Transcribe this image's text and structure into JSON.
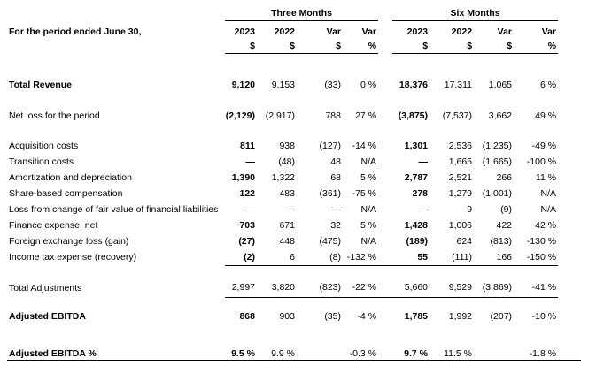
{
  "table": {
    "corner_label": "For the period ended June 30,",
    "groups": [
      {
        "label": "Three Months"
      },
      {
        "label": "Six Months"
      }
    ],
    "year_columns": [
      "2023",
      "2022",
      "Var",
      "Var",
      "2023",
      "2022",
      "Var",
      "Var"
    ],
    "unit_row": [
      "$",
      "$",
      "$",
      "%",
      "$",
      "$",
      "$",
      "%"
    ],
    "rows": [
      {
        "label": "Total Revenue",
        "labelBold": true,
        "boldCols": [
          0,
          4
        ],
        "gapBefore": 26,
        "height": 18,
        "ruleAfter": false,
        "ruleFull": false,
        "values": [
          "9,120",
          "9,153",
          "(33)",
          "0 %",
          "18,376",
          "17,311",
          "1,065",
          "6 %"
        ]
      },
      {
        "label": "Net loss for the period",
        "labelBold": false,
        "boldCols": [
          0,
          4
        ],
        "gapBefore": 17,
        "height": 18,
        "ruleAfter": false,
        "ruleFull": false,
        "values": [
          "(2,129)",
          "(2,917)",
          "788",
          "27 %",
          "(3,875)",
          "(7,537)",
          "3,662",
          "49 %"
        ]
      },
      {
        "label": "Acquisition costs",
        "labelBold": false,
        "boldCols": [
          0,
          4
        ],
        "gapBefore": 16,
        "height": 18,
        "ruleAfter": false,
        "ruleFull": false,
        "values": [
          "811",
          "938",
          "(127)",
          "-14 %",
          "1,301",
          "2,536",
          "(1,235)",
          "-49 %"
        ]
      },
      {
        "label": "Transition costs",
        "labelBold": false,
        "boldCols": [
          0,
          4
        ],
        "gapBefore": 0,
        "height": 18,
        "ruleAfter": false,
        "ruleFull": false,
        "values": [
          "—",
          "(48)",
          "48",
          "N/A",
          "—",
          "1,665",
          "(1,665)",
          "-100 %"
        ]
      },
      {
        "label": "Amortization and depreciation",
        "labelBold": false,
        "boldCols": [
          0,
          4
        ],
        "gapBefore": 0,
        "height": 18,
        "ruleAfter": false,
        "ruleFull": false,
        "values": [
          "1,390",
          "1,322",
          "68",
          "5 %",
          "2,787",
          "2,521",
          "266",
          "11 %"
        ]
      },
      {
        "label": "Share-based compensation",
        "labelBold": false,
        "boldCols": [
          0,
          4
        ],
        "gapBefore": 0,
        "height": 18,
        "ruleAfter": false,
        "ruleFull": false,
        "values": [
          "122",
          "483",
          "(361)",
          "-75 %",
          "278",
          "1,279",
          "(1,001)",
          "N/A"
        ]
      },
      {
        "label": "Loss from change of fair value of financial liabilities",
        "labelBold": false,
        "boldCols": [
          0,
          4
        ],
        "gapBefore": 0,
        "height": 18,
        "ruleAfter": false,
        "ruleFull": false,
        "values": [
          "—",
          "—",
          "—",
          "N/A",
          "—",
          "9",
          "(9)",
          "N/A"
        ]
      },
      {
        "label": "Finance expense, net",
        "labelBold": false,
        "boldCols": [
          0,
          4
        ],
        "gapBefore": 0,
        "height": 18,
        "ruleAfter": false,
        "ruleFull": false,
        "values": [
          "703",
          "671",
          "32",
          "5 %",
          "1,428",
          "1,006",
          "422",
          "42 %"
        ]
      },
      {
        "label": "Foreign exchange loss (gain)",
        "labelBold": false,
        "boldCols": [
          0,
          4
        ],
        "gapBefore": 0,
        "height": 18,
        "ruleAfter": false,
        "ruleFull": false,
        "values": [
          "(27)",
          "448",
          "(475)",
          "N/A",
          "(189)",
          "624",
          "(813)",
          "-130 %"
        ]
      },
      {
        "label": "Income tax expense (recovery)",
        "labelBold": false,
        "boldCols": [
          0,
          4
        ],
        "gapBefore": 0,
        "height": 18,
        "ruleAfter": true,
        "ruleFull": false,
        "values": [
          "(2)",
          "6",
          "(8)",
          "-132 %",
          "55",
          "(111)",
          "166",
          "-150 %"
        ]
      },
      {
        "label": "Total Adjustments",
        "labelBold": false,
        "boldCols": [],
        "gapBefore": 14,
        "height": 22,
        "ruleAfter": true,
        "ruleFull": false,
        "values": [
          "2,997",
          "3,820",
          "(823)",
          "-22 %",
          "5,660",
          "9,529",
          "(3,869)",
          "-41 %"
        ]
      },
      {
        "label": "Adjusted EBITDA",
        "labelBold": true,
        "boldCols": [
          0,
          4
        ],
        "gapBefore": 12,
        "height": 18,
        "ruleAfter": false,
        "ruleFull": false,
        "values": [
          "868",
          "903",
          "(35)",
          "-4 %",
          "1,785",
          "1,992",
          "(207)",
          "-10 %"
        ]
      },
      {
        "label": "Adjusted EBITDA %",
        "labelBold": true,
        "boldCols": [
          0,
          4
        ],
        "gapBefore": 27,
        "height": 13,
        "ruleAfter": true,
        "ruleFull": true,
        "values": [
          "9.5 %",
          "9.9 %",
          "",
          "-0.3 %",
          "9.7 %",
          "11.5 %",
          "",
          "-1.8 %"
        ]
      }
    ]
  }
}
